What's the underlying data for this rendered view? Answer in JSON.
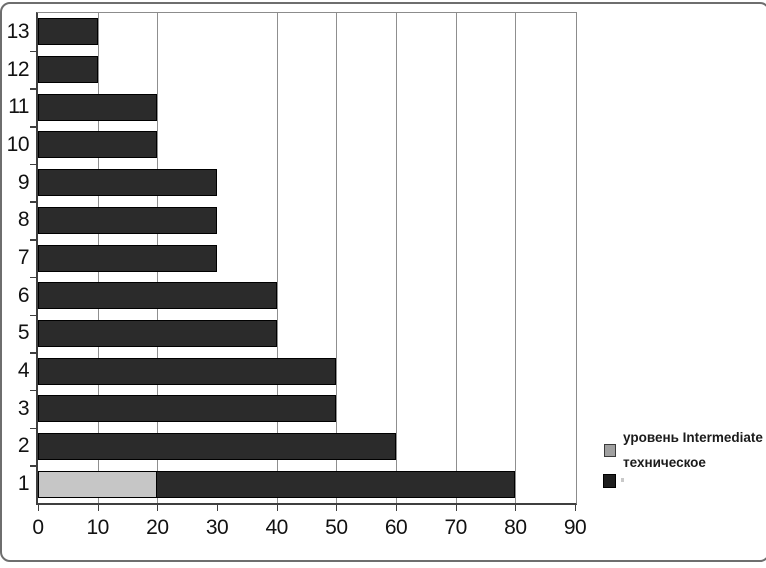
{
  "chart_data": {
    "type": "bar",
    "orientation": "horizontal",
    "stacked": true,
    "title": "",
    "xlabel": "",
    "ylabel": "",
    "categories": [
      "1",
      "2",
      "3",
      "4",
      "5",
      "6",
      "7",
      "8",
      "9",
      "10",
      "11",
      "12",
      "13"
    ],
    "series": [
      {
        "name": "уровень Intermediate",
        "color": "#c6c6c6",
        "values": [
          20,
          0,
          0,
          0,
          0,
          0,
          0,
          0,
          0,
          0,
          0,
          0,
          0
        ]
      },
      {
        "name": "техническое",
        "color": "#2b2b2b",
        "values": [
          60,
          60,
          50,
          50,
          40,
          40,
          30,
          30,
          30,
          20,
          20,
          10,
          10
        ]
      }
    ],
    "totals": [
      80,
      60,
      50,
      50,
      40,
      40,
      30,
      30,
      30,
      20,
      20,
      10,
      10
    ],
    "xlim": [
      0,
      90
    ],
    "x_ticks": [
      0,
      10,
      20,
      30,
      40,
      50,
      60,
      70,
      80,
      90
    ],
    "gridlines_x": [
      10,
      20,
      40,
      50,
      60,
      70,
      80
    ],
    "grid": true,
    "legend_position": "right"
  },
  "legend": {
    "entries": [
      {
        "label": "уровень Intermediate",
        "swatch_color": "#a0a0a0"
      },
      {
        "label": "техническое",
        "swatch_color": "#1e1e1e"
      }
    ]
  },
  "colors": {
    "bar_dark": "#2b2b2b",
    "bar_gray": "#c6c6c6",
    "bar_border": "#000000",
    "gridline": "#8f8f8f",
    "frame": "#8c8c8c",
    "axis": "#3f3f3f",
    "text": "#121212",
    "outer_border": "#6e6e6e"
  }
}
